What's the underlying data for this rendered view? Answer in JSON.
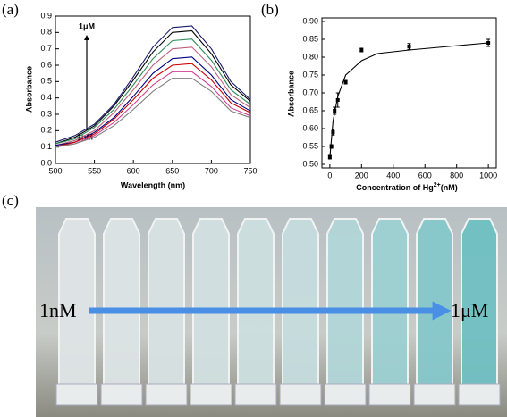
{
  "chart_data": [
    {
      "type": "line",
      "panel_label": "(a)",
      "x_label": "Wavelength (nm)",
      "y_label": "Absorbance",
      "annotations": [
        "1μM",
        "1nM"
      ],
      "x": [
        500,
        525,
        550,
        575,
        600,
        625,
        650,
        675,
        700,
        725,
        750
      ],
      "series": [
        {
          "color": "#1a1a6e",
          "values": [
            0.13,
            0.17,
            0.24,
            0.36,
            0.53,
            0.71,
            0.83,
            0.84,
            0.7,
            0.5,
            0.39
          ]
        },
        {
          "color": "#000000",
          "values": [
            0.12,
            0.16,
            0.23,
            0.35,
            0.51,
            0.68,
            0.8,
            0.81,
            0.67,
            0.48,
            0.38
          ]
        },
        {
          "color": "#2e8b57",
          "values": [
            0.12,
            0.15,
            0.22,
            0.33,
            0.48,
            0.64,
            0.75,
            0.76,
            0.63,
            0.45,
            0.36
          ]
        },
        {
          "color": "#c06080",
          "values": [
            0.11,
            0.14,
            0.2,
            0.31,
            0.45,
            0.6,
            0.7,
            0.71,
            0.59,
            0.42,
            0.34
          ]
        },
        {
          "color": "#000080",
          "values": [
            0.11,
            0.13,
            0.19,
            0.28,
            0.41,
            0.55,
            0.64,
            0.65,
            0.54,
            0.39,
            0.32
          ]
        },
        {
          "color": "#cc0000",
          "values": [
            0.1,
            0.13,
            0.18,
            0.27,
            0.39,
            0.52,
            0.6,
            0.61,
            0.51,
            0.37,
            0.31
          ]
        },
        {
          "color": "#d04090",
          "values": [
            0.1,
            0.12,
            0.17,
            0.25,
            0.36,
            0.48,
            0.56,
            0.56,
            0.47,
            0.34,
            0.29
          ]
        },
        {
          "color": "#808080",
          "values": [
            0.1,
            0.12,
            0.16,
            0.23,
            0.33,
            0.44,
            0.52,
            0.52,
            0.44,
            0.32,
            0.28
          ]
        }
      ],
      "xlim": [
        500,
        750
      ],
      "xticks": [
        500,
        550,
        600,
        650,
        700,
        750
      ],
      "ylim": [
        0,
        0.9
      ],
      "yticks": [
        {
          "value": 0,
          "label": "0.0"
        },
        0.1,
        0.2,
        0.3,
        0.4,
        0.5,
        0.6,
        0.7,
        0.8,
        0.9
      ]
    },
    {
      "type": "scatter",
      "panel_label": "(b)",
      "x_label": [
        "Concentration of Hg",
        "2+",
        "(nM)"
      ],
      "y_label": "Absorbance",
      "series": [
        {
          "color": "#000000",
          "marker": "square",
          "x": [
            0,
            10,
            20,
            30,
            50,
            100,
            200,
            500,
            1000
          ],
          "values": [
            0.52,
            0.55,
            0.59,
            0.65,
            0.68,
            0.73,
            0.82,
            0.83,
            0.84
          ],
          "errors": [
            0.005,
            0.005,
            0.008,
            0.01,
            0.02,
            0.005,
            0.005,
            0.008,
            0.01
          ]
        },
        {
          "color": "#000000",
          "marker": "line",
          "x": [
            0,
            20,
            50,
            100,
            150,
            200,
            300,
            500,
            750,
            1000
          ],
          "values": [
            0.52,
            0.62,
            0.69,
            0.75,
            0.77,
            0.79,
            0.81,
            0.82,
            0.83,
            0.84
          ]
        }
      ],
      "xlim": [
        -50,
        1050
      ],
      "xticks": [
        0,
        200,
        400,
        600,
        800,
        1000
      ],
      "ylim": [
        0.49,
        0.91
      ],
      "yticks": [
        {
          "value": 0.5,
          "label": "0.50"
        },
        {
          "value": 0.55,
          "label": "0.55"
        },
        {
          "value": 0.6,
          "label": "0.60"
        },
        {
          "value": 0.65,
          "label": "0.65"
        },
        {
          "value": 0.7,
          "label": "0.70"
        },
        {
          "value": 0.75,
          "label": "0.75"
        },
        {
          "value": 0.8,
          "label": "0.80"
        },
        {
          "value": 0.85,
          "label": "0.85"
        },
        {
          "value": 0.9,
          "label": "0.90"
        }
      ]
    }
  ],
  "photo": {
    "panel_label": "(c)",
    "start_label": "1nM",
    "end_label": "1μM"
  }
}
